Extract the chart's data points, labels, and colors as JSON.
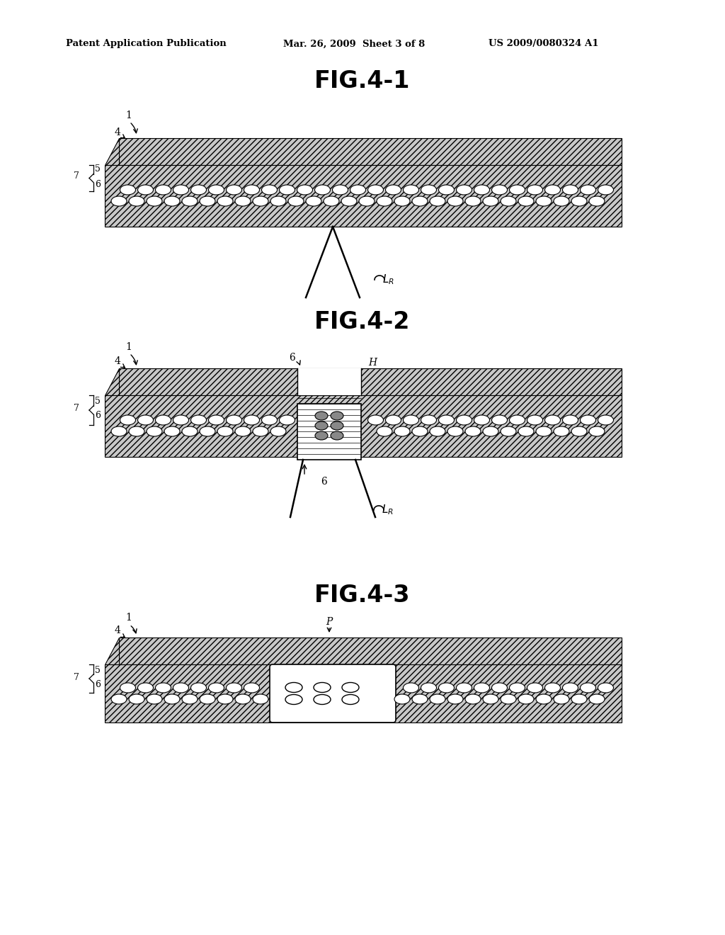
{
  "bg_color": "#ffffff",
  "header_left": "Patent Application Publication",
  "header_mid": "Mar. 26, 2009  Sheet 3 of 8",
  "header_right": "US 2009/0080324 A1",
  "fig_titles": [
    "FIG.4-1",
    "FIG.4-2",
    "FIG.4-3"
  ],
  "hatch_color": "#aaaaaa",
  "disc_bg": "#d8d8d8",
  "bubble_face": "#ffffff",
  "bubble_filled": "#888888"
}
